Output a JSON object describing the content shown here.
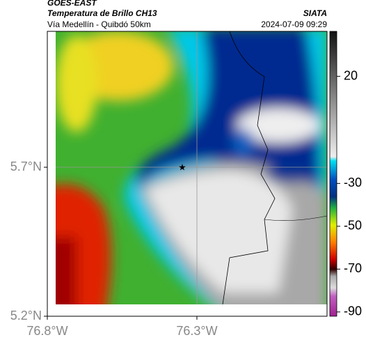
{
  "header": {
    "source": "GOES-EAST",
    "title": "Temperatura de Brillo CH13",
    "subtitle": "Vía Medellín - Quibdó 50km",
    "credit": "SIATA",
    "timestamp": "2024-07-09 09:29"
  },
  "map": {
    "xlim": [
      -76.8,
      -75.865
    ],
    "ylim": [
      5.2,
      6.156
    ],
    "xticks": [
      {
        "value": -76.8,
        "label": "76.8°W"
      },
      {
        "value": -76.3,
        "label": "76.3°W"
      }
    ],
    "yticks": [
      {
        "value": 5.2,
        "label": "5.2°N"
      },
      {
        "value": 5.7,
        "label": "5.7°N"
      }
    ]
  },
  "colorbar": {
    "clim": [
      -92,
      41
    ],
    "ticks": [
      20,
      -30,
      -50,
      -70,
      -90
    ]
  }
}
